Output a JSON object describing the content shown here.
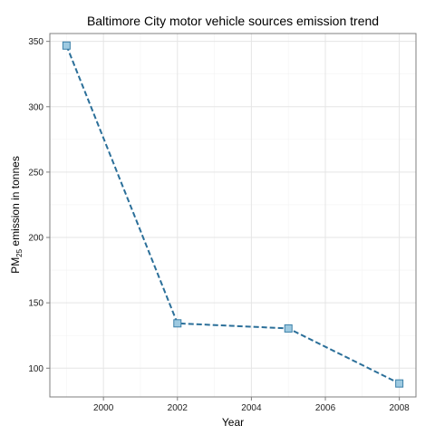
{
  "chart_data": {
    "type": "line",
    "title": "Baltimore City motor vehicle sources emission trend",
    "xlabel": "Year",
    "ylabel": {
      "prefix": "PM",
      "subscript": "25",
      "suffix": " emission in tonnes"
    },
    "x": [
      1999,
      2002,
      2005,
      2008
    ],
    "values": [
      346.8,
      134.3,
      130.4,
      88.3
    ],
    "xlim": [
      1998.55,
      2008.45
    ],
    "ylim": [
      78,
      356
    ],
    "xticks": [
      2000,
      2002,
      2004,
      2006,
      2008
    ],
    "yticks": [
      100,
      150,
      200,
      250,
      300,
      350
    ],
    "grid": true,
    "line_style": "dashed",
    "marker": "square",
    "colors": {
      "line": "#2b6f99",
      "marker_fill": "#9ecae1",
      "marker_stroke": "#3a7fa8",
      "grid_major": "#e5e5e5",
      "grid_minor": "#f3f3f3",
      "panel_border": "#7f7f7f"
    }
  }
}
